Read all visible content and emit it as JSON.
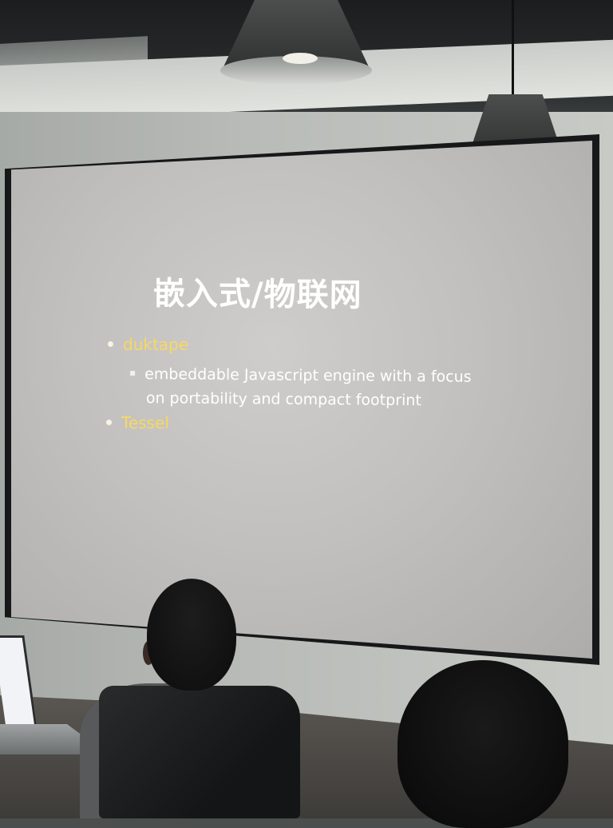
{
  "slide": {
    "title": "嵌入式/物联网",
    "bullets": [
      {
        "label": "duktape",
        "sub": [
          "embeddable Javascript engine with a focus",
          "on portability and compact footprint"
        ]
      },
      {
        "label": "Tessel"
      }
    ]
  },
  "colors": {
    "bullet_text": "#f7d862",
    "sub_text": "#ffffff",
    "screen": "#c8c6c4",
    "frame": "#16181a"
  }
}
